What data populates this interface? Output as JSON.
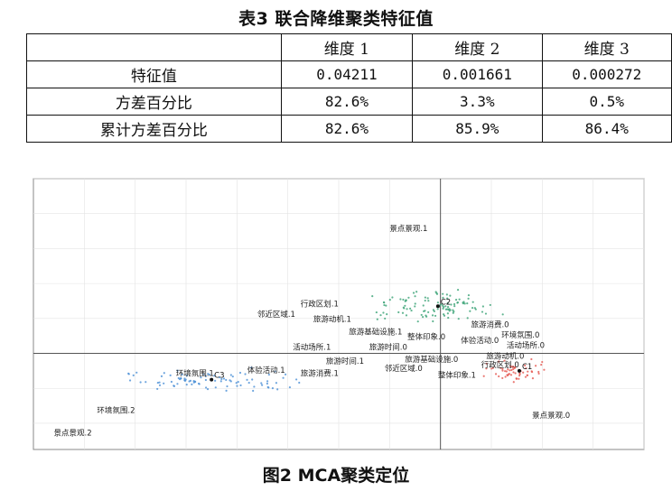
{
  "table": {
    "title": "表3 联合降维聚类特征值",
    "headers": [
      "",
      "维度 1",
      "维度 2",
      "维度 3"
    ],
    "rows": [
      {
        "label": "特征值",
        "values": [
          "0.04211",
          "0.001661",
          "0.000272"
        ]
      },
      {
        "label": "方差百分比",
        "values": [
          "82.6%",
          "3.3%",
          "0.5%"
        ]
      },
      {
        "label": "累计方差百分比",
        "values": [
          "82.6%",
          "85.9%",
          "86.4%"
        ]
      }
    ]
  },
  "figure": {
    "caption": "图2 MCA聚类定位"
  },
  "chart_data": {
    "type": "scatter",
    "title": "",
    "xlabel": "",
    "ylabel": "",
    "xlim": [
      -1.6,
      0.8
    ],
    "ylim": [
      -0.55,
      1.0
    ],
    "grid": true,
    "reference_lines": {
      "x": 0,
      "y": 0
    },
    "clusters": [
      {
        "name": "C1",
        "color": "#e5564f",
        "center": [
          0.31,
          -0.1
        ]
      },
      {
        "name": "C2",
        "color": "#3aa276",
        "center": [
          -0.01,
          0.27
        ]
      },
      {
        "name": "C3",
        "color": "#4a8fd6",
        "center": [
          -0.9,
          -0.15
        ]
      }
    ],
    "labels": [
      {
        "text": "景点景观.1",
        "x": -0.2,
        "y": 0.7
      },
      {
        "text": "行政区划.1",
        "x": -0.55,
        "y": 0.27
      },
      {
        "text": "邻近区域.1",
        "x": -0.72,
        "y": 0.21
      },
      {
        "text": "旅游动机.1",
        "x": -0.5,
        "y": 0.18
      },
      {
        "text": "旅游基础设施.1",
        "x": -0.36,
        "y": 0.11
      },
      {
        "text": "活动场所.1",
        "x": -0.58,
        "y": 0.02
      },
      {
        "text": "旅游时间.0",
        "x": -0.28,
        "y": 0.02
      },
      {
        "text": "旅游时间.1",
        "x": -0.45,
        "y": -0.06
      },
      {
        "text": "整体印象.0",
        "x": -0.13,
        "y": 0.08
      },
      {
        "text": "旅游消费.0",
        "x": 0.12,
        "y": 0.15
      },
      {
        "text": "体验活动.0",
        "x": 0.08,
        "y": 0.06
      },
      {
        "text": "环境氛围.0",
        "x": 0.24,
        "y": 0.09
      },
      {
        "text": "活动场所.0",
        "x": 0.26,
        "y": 0.03
      },
      {
        "text": "旅游基础设施.0",
        "x": -0.14,
        "y": -0.05
      },
      {
        "text": "旅游动机.0",
        "x": 0.18,
        "y": -0.03
      },
      {
        "text": "行政区划.0",
        "x": 0.16,
        "y": -0.08
      },
      {
        "text": "邻近区域.0",
        "x": -0.22,
        "y": -0.1
      },
      {
        "text": "整体印象.1",
        "x": -0.01,
        "y": -0.14
      },
      {
        "text": "环境氛围.1",
        "x": -1.04,
        "y": -0.13
      },
      {
        "text": "体验活动.1",
        "x": -0.76,
        "y": -0.11
      },
      {
        "text": "旅游消费.1",
        "x": -0.55,
        "y": -0.13
      },
      {
        "text": "环境氛围.2",
        "x": -1.35,
        "y": -0.34
      },
      {
        "text": "景点景观.2",
        "x": -1.52,
        "y": -0.47
      },
      {
        "text": "景点景观.0",
        "x": 0.36,
        "y": -0.37
      }
    ]
  }
}
